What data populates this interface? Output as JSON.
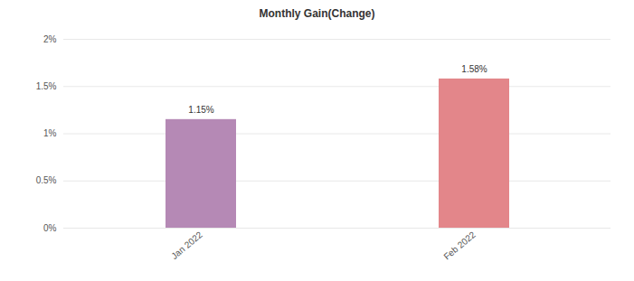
{
  "chart_data": {
    "type": "bar",
    "title": "Monthly Gain(Change)",
    "categories": [
      "Jan 2022",
      "Feb 2022"
    ],
    "values": [
      1.15,
      1.58
    ],
    "value_labels": [
      "1.15%",
      "1.58%"
    ],
    "data_labels": true,
    "colors": [
      "#b589b5",
      "#e3868a"
    ],
    "ylim": [
      0,
      2
    ],
    "yticks": [
      {
        "value": 0,
        "label": "0%"
      },
      {
        "value": 0.5,
        "label": "0.5%"
      },
      {
        "value": 1,
        "label": "1%"
      },
      {
        "value": 1.5,
        "label": "1.5%"
      },
      {
        "value": 2,
        "label": "2%"
      }
    ],
    "grid": true
  }
}
